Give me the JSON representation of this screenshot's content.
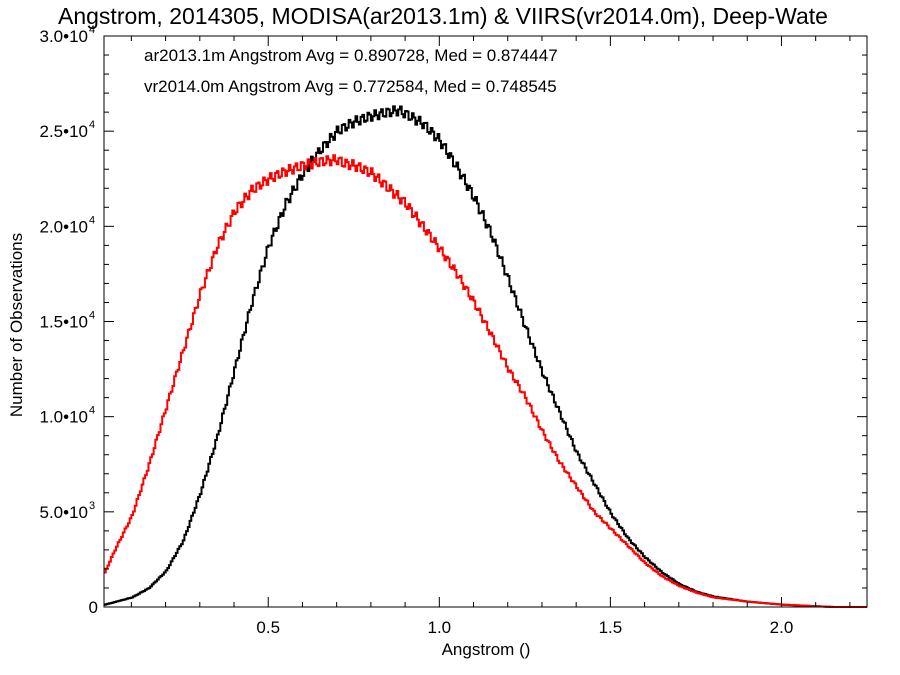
{
  "chart_data": {
    "type": "line",
    "title": "Angstrom, 2014305, MODISA(ar2013.1m) & VIIRS(vr2014.0m), Deep-Wate",
    "xlabel": "Angstrom ()",
    "ylabel": "Number of Observations",
    "xlim": [
      0.02,
      2.25
    ],
    "ylim": [
      0,
      30000
    ],
    "x_ticks": [
      {
        "value": 0.5,
        "label": "0.5"
      },
      {
        "value": 1.0,
        "label": "1.0"
      },
      {
        "value": 1.5,
        "label": "1.5"
      },
      {
        "value": 2.0,
        "label": "2.0"
      }
    ],
    "y_ticks": [
      {
        "value": 0,
        "mant": "0",
        "exp": ""
      },
      {
        "value": 5000,
        "mant": "5.0•10",
        "exp": "3"
      },
      {
        "value": 10000,
        "mant": "1.0•10",
        "exp": "4"
      },
      {
        "value": 15000,
        "mant": "1.5•10",
        "exp": "4"
      },
      {
        "value": 20000,
        "mant": "2.0•10",
        "exp": "4"
      },
      {
        "value": 25000,
        "mant": "2.5•10",
        "exp": "4"
      },
      {
        "value": 30000,
        "mant": "3.0•10",
        "exp": "4"
      }
    ],
    "legend_placement": "top-left",
    "annotations": [
      {
        "text": "ar2013.1m Angstrom Avg = 0.890728, Med = 0.874447",
        "color": "#000000"
      },
      {
        "text": "vr2014.0m Angstrom Avg = 0.772584, Med = 0.748545",
        "color": "#ff0000"
      }
    ],
    "series": [
      {
        "color": "#000000",
        "step": true,
        "x": [
          0.02,
          0.1,
          0.15,
          0.2,
          0.25,
          0.3,
          0.35,
          0.4,
          0.45,
          0.5,
          0.55,
          0.6,
          0.65,
          0.7,
          0.75,
          0.8,
          0.85,
          0.88,
          0.9,
          0.95,
          1.0,
          1.05,
          1.1,
          1.15,
          1.2,
          1.25,
          1.3,
          1.35,
          1.4,
          1.45,
          1.5,
          1.55,
          1.6,
          1.65,
          1.7,
          1.75,
          1.8,
          1.9,
          2.0,
          2.1,
          2.15
        ],
        "y": [
          120,
          500,
          1000,
          1900,
          3500,
          6000,
          9000,
          12500,
          16000,
          19000,
          21200,
          22800,
          24000,
          25000,
          25500,
          25800,
          26000,
          26100,
          25900,
          25400,
          24500,
          23100,
          21500,
          19600,
          17200,
          14700,
          12300,
          10200,
          8100,
          6500,
          4900,
          3600,
          2600,
          1800,
          1200,
          800,
          550,
          280,
          120,
          40,
          0
        ]
      },
      {
        "color": "#ff0000",
        "step": true,
        "x": [
          0.02,
          0.05,
          0.1,
          0.15,
          0.2,
          0.25,
          0.3,
          0.35,
          0.4,
          0.45,
          0.5,
          0.55,
          0.6,
          0.65,
          0.7,
          0.72,
          0.75,
          0.8,
          0.85,
          0.9,
          0.95,
          1.0,
          1.05,
          1.1,
          1.15,
          1.2,
          1.25,
          1.3,
          1.35,
          1.4,
          1.45,
          1.5,
          1.55,
          1.6,
          1.65,
          1.7,
          1.75,
          1.8,
          1.9,
          2.0,
          2.1,
          2.15
        ],
        "y": [
          1800,
          3000,
          4800,
          7500,
          10500,
          13500,
          16500,
          19000,
          20800,
          21900,
          22500,
          22900,
          23200,
          23400,
          23500,
          23300,
          23200,
          22800,
          22000,
          21200,
          20000,
          18800,
          17500,
          16000,
          14300,
          12500,
          11000,
          9200,
          7600,
          6300,
          5000,
          4100,
          3200,
          2300,
          1600,
          1100,
          750,
          500,
          280,
          130,
          40,
          0
        ]
      }
    ]
  }
}
